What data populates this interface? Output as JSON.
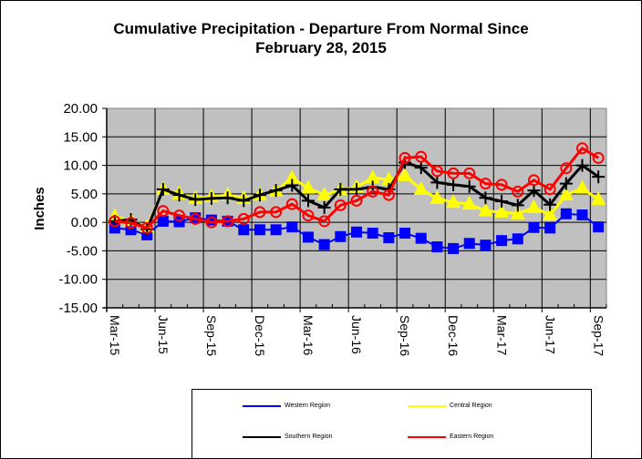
{
  "chart_data": {
    "type": "line",
    "title": "Cumulative Precipitation - Departure From Normal Since February 28, 2015",
    "title_lines": [
      "Cumulative Precipitation - Departure From Normal Since",
      "February 28, 2015"
    ],
    "xlabel": "",
    "ylabel": "Inches",
    "ylim": [
      -15,
      20
    ],
    "yticks": [
      "20.00",
      "15.00",
      "10.00",
      "5.00",
      "0.00",
      "-5.00",
      "-10.00",
      "-15.00"
    ],
    "ytick_values": [
      20,
      15,
      10,
      5,
      0,
      -5,
      -10,
      -15
    ],
    "xtick_labels": [
      "Mar-15",
      "Jun-15",
      "Sep-15",
      "Dec-15",
      "Mar-16",
      "Jun-16",
      "Sep-16",
      "Dec-16",
      "Mar-17",
      "Jun-17",
      "Sep-17"
    ],
    "grid": true,
    "background": "#C0C0C0",
    "x": [
      "Mar-15",
      "Apr-15",
      "May-15",
      "Jun-15",
      "Jul-15",
      "Aug-15",
      "Sep-15",
      "Oct-15",
      "Nov-15",
      "Dec-15",
      "Jan-16",
      "Feb-16",
      "Mar-16",
      "Apr-16",
      "May-16",
      "Jun-16",
      "Jul-16",
      "Aug-16",
      "Sep-16",
      "Oct-16",
      "Nov-16",
      "Dec-16",
      "Jan-17",
      "Feb-17",
      "Mar-17",
      "Apr-17",
      "May-17",
      "Jun-17",
      "Jul-17",
      "Aug-17",
      "Sep-17"
    ],
    "series": [
      {
        "name": "Western Region",
        "color": "#0000FF",
        "marker": "square",
        "values": [
          -1.0,
          -1.3,
          -2.2,
          0.2,
          0.1,
          0.8,
          0.4,
          0.2,
          -1.3,
          -1.3,
          -1.3,
          -0.8,
          -2.6,
          -3.9,
          -2.5,
          -1.7,
          -1.9,
          -2.7,
          -1.9,
          -2.8,
          -4.3,
          -4.6,
          -3.7,
          -4.0,
          -3.2,
          -2.9,
          -0.9,
          -1.0,
          1.5,
          1.3,
          -0.8
        ]
      },
      {
        "name": "Central Region",
        "color": "#FFFF00",
        "marker": "triangle",
        "values": [
          1.0,
          0.3,
          -0.8,
          5.8,
          5.0,
          4.2,
          4.5,
          4.8,
          4.2,
          4.8,
          5.5,
          7.8,
          6.0,
          4.8,
          5.7,
          6.2,
          7.8,
          7.5,
          8.2,
          5.8,
          4.2,
          3.5,
          3.2,
          2.0,
          1.8,
          1.5,
          2.6,
          1.3,
          4.8,
          6.0,
          4.0
        ]
      },
      {
        "name": "Southern Region",
        "color": "#000000",
        "marker": "plus",
        "values": [
          0.2,
          0.5,
          -1.2,
          5.8,
          4.8,
          4.0,
          4.2,
          4.3,
          3.8,
          4.8,
          5.6,
          6.5,
          3.8,
          2.6,
          5.8,
          5.8,
          6.2,
          5.8,
          10.5,
          9.6,
          7.0,
          6.6,
          6.3,
          4.3,
          3.7,
          3.0,
          5.6,
          3.1,
          6.8,
          10.0,
          8.0
        ]
      },
      {
        "name": "Eastern Region",
        "color": "#FF0000",
        "marker": "circle",
        "values": [
          0.2,
          -0.1,
          -1.0,
          2.0,
          1.2,
          0.6,
          0.0,
          0.2,
          0.6,
          1.8,
          1.8,
          3.2,
          1.2,
          0.2,
          3.0,
          3.8,
          5.4,
          4.8,
          11.3,
          11.5,
          9.0,
          8.6,
          8.6,
          6.8,
          6.6,
          5.4,
          7.4,
          5.8,
          9.5,
          13.0,
          11.3
        ]
      }
    ],
    "legend": "bottom"
  }
}
